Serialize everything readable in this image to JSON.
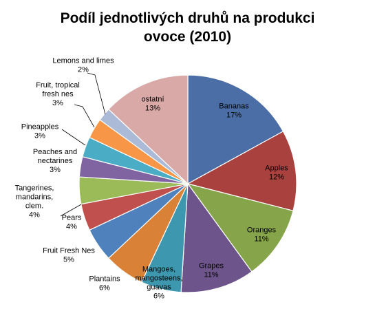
{
  "chart_data": {
    "type": "pie",
    "title_lines": [
      "Podíl jednotlivých druhů na produkci",
      "ovoce (2010)"
    ],
    "start_angle_deg": 0,
    "direction": "clockwise",
    "slices": [
      {
        "label_lines": [
          "Bananas"
        ],
        "pct_label": "17%",
        "value": 17,
        "color": "#4A6EA5"
      },
      {
        "label_lines": [
          "Apples"
        ],
        "pct_label": "12%",
        "value": 12,
        "color": "#A9423F"
      },
      {
        "label_lines": [
          "Oranges"
        ],
        "pct_label": "11%",
        "value": 11,
        "color": "#86A44A"
      },
      {
        "label_lines": [
          "Grapes"
        ],
        "pct_label": "11%",
        "value": 11,
        "color": "#6D548B"
      },
      {
        "label_lines": [
          "Mangoes,",
          "mangosteens,",
          "guavas"
        ],
        "pct_label": "6%",
        "value": 6,
        "color": "#3D97AE"
      },
      {
        "label_lines": [
          "Plantains"
        ],
        "pct_label": "6%",
        "value": 6,
        "color": "#DA8138"
      },
      {
        "label_lines": [
          "Fruit Fresh Nes"
        ],
        "pct_label": "5%",
        "value": 5,
        "color": "#4F81BD"
      },
      {
        "label_lines": [
          "Pears"
        ],
        "pct_label": "4%",
        "value": 4,
        "color": "#C0504D"
      },
      {
        "label_lines": [
          "Tangerines,",
          "mandarins,",
          "clem."
        ],
        "pct_label": "4%",
        "value": 4,
        "color": "#9BBB59"
      },
      {
        "label_lines": [
          "Peaches and",
          "nectarines"
        ],
        "pct_label": "3%",
        "value": 3,
        "color": "#8064A2"
      },
      {
        "label_lines": [
          "Pineapples"
        ],
        "pct_label": "3%",
        "value": 3,
        "color": "#4BACC6"
      },
      {
        "label_lines": [
          "Fruit, tropical",
          "fresh nes"
        ],
        "pct_label": "3%",
        "value": 3,
        "color": "#F79646"
      },
      {
        "label_lines": [
          "Lemons and limes"
        ],
        "pct_label": "2%",
        "value": 2,
        "color": "#AABAD7"
      },
      {
        "label_lines": [
          "ostatní"
        ],
        "pct_label": "13%",
        "value": 13,
        "color": "#D9A9A8"
      }
    ]
  }
}
